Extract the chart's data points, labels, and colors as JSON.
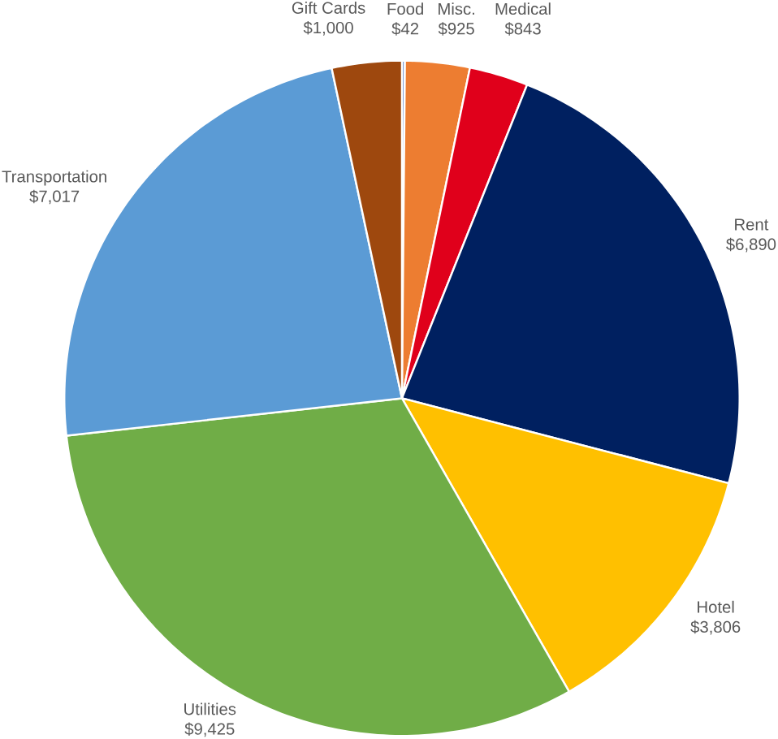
{
  "chart_data": {
    "type": "pie",
    "categories": [
      "Food",
      "Misc.",
      "Medical",
      "Rent",
      "Hotel",
      "Utilities",
      "Transportation",
      "Gift Cards"
    ],
    "values": [
      42,
      925,
      843,
      6890,
      3806,
      9425,
      7017,
      1000
    ],
    "value_labels": [
      "$42",
      "$925",
      "$843",
      "$6,890",
      "$3,806",
      "$9,425",
      "$7,017",
      "$1,000"
    ],
    "colors": [
      "#4472c4",
      "#ed7d31",
      "#e0001b",
      "#002060",
      "#ffc000",
      "#70ad47",
      "#5b9bd5",
      "#9e480e"
    ]
  }
}
